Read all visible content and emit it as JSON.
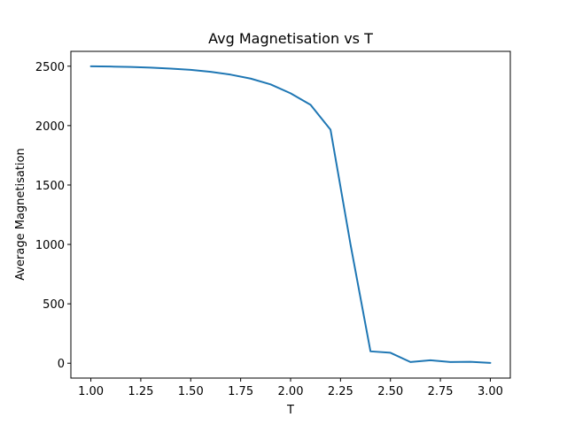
{
  "chart_data": {
    "type": "line",
    "title": "Avg Magnetisation vs T",
    "xlabel": "T",
    "ylabel": "Average Magnetisation",
    "xlim": [
      0.9,
      3.1
    ],
    "ylim": [
      -125,
      2625
    ],
    "xticks": [
      1.0,
      1.25,
      1.5,
      1.75,
      2.0,
      2.25,
      2.5,
      2.75,
      3.0
    ],
    "xtick_labels": [
      "1.00",
      "1.25",
      "1.50",
      "1.75",
      "2.00",
      "2.25",
      "2.50",
      "2.75",
      "3.00"
    ],
    "yticks": [
      0,
      500,
      1000,
      1500,
      2000,
      2500
    ],
    "ytick_labels": [
      "0",
      "500",
      "1000",
      "1500",
      "2000",
      "2500"
    ],
    "grid": false,
    "series": [
      {
        "color": "#1f77b4",
        "x": [
          1.0,
          1.1,
          1.2,
          1.3,
          1.4,
          1.5,
          1.6,
          1.7,
          1.8,
          1.9,
          2.0,
          2.1,
          2.2,
          2.3,
          2.4,
          2.5,
          2.6,
          2.7,
          2.8,
          2.9,
          3.0
        ],
        "y": [
          2499,
          2497,
          2494,
          2488,
          2480,
          2469,
          2453,
          2429,
          2396,
          2347,
          2272,
          2175,
          1965,
          1000,
          100,
          88,
          10,
          25,
          10,
          12,
          3
        ]
      }
    ]
  }
}
